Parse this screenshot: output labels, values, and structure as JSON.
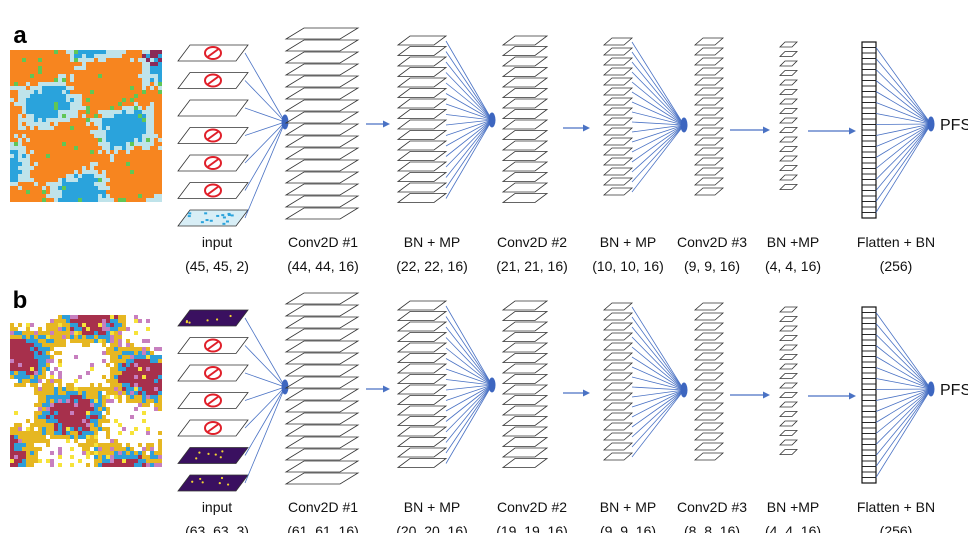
{
  "panels": [
    {
      "letter": "a",
      "output": "PFS",
      "map_palette": [
        "#f7851f",
        "#bfe3ea",
        "#2aa3dc",
        "#60c656",
        "#8a2a58"
      ],
      "input_channels": [
        "blocked",
        "blocked",
        "empty",
        "blocked",
        "blocked",
        "blocked",
        "map"
      ],
      "layers": [
        {
          "name": "input",
          "shape": "(45, 45, 2)"
        },
        {
          "name": "Conv2D #1",
          "shape": "(44, 44, 16)"
        },
        {
          "name": "BN + MP",
          "shape": "(22, 22, 16)"
        },
        {
          "name": "Conv2D #2",
          "shape": "(21, 21, 16)"
        },
        {
          "name": "BN + MP",
          "shape": "(10, 10, 16)"
        },
        {
          "name": "Conv2D #3",
          "shape": "(9, 9, 16)"
        },
        {
          "name": "BN +MP",
          "shape": "(4, 4, 16)"
        },
        {
          "name": "Flatten + BN",
          "shape": "(256)"
        }
      ]
    },
    {
      "letter": "b",
      "output": "PFS",
      "map_palette": [
        "#e6b722",
        "#ffffff",
        "#2f9ed9",
        "#a7304c",
        "#c77fbf",
        "#f6e33a"
      ],
      "input_channels": [
        "dark",
        "blocked",
        "blocked",
        "blocked",
        "blocked",
        "dark",
        "dark"
      ],
      "layers": [
        {
          "name": "input",
          "shape": "(63, 63, 3)"
        },
        {
          "name": "Conv2D #1",
          "shape": "(61, 61, 16)"
        },
        {
          "name": "BN + MP",
          "shape": "(20, 20, 16)"
        },
        {
          "name": "Conv2D #2",
          "shape": "(19, 19, 16)"
        },
        {
          "name": "BN + MP",
          "shape": "(9, 9, 16)"
        },
        {
          "name": "Conv2D #3",
          "shape": "(8, 8, 16)"
        },
        {
          "name": "BN +MP",
          "shape": "(4, 4, 16)"
        },
        {
          "name": "Flatten + BN",
          "shape": "(256)"
        }
      ]
    }
  ],
  "colors": {
    "connector": "#4a72c4",
    "node": "#3d66c0",
    "stack_stroke": "#333333",
    "blocked_sign": "#e0202a",
    "dark_channel": "#3a1060"
  }
}
